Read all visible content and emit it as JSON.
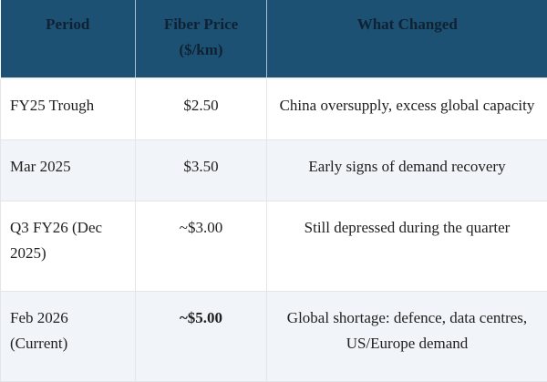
{
  "table": {
    "title_semantic": "fiber-price-history-table",
    "columns": {
      "period": "Period",
      "price": "Fiber Price ($/km)",
      "changed": "What Changed"
    },
    "rows": [
      {
        "period": "FY25 Trough",
        "price": "$2.50",
        "price_bold": false,
        "changed": "China oversupply, excess global capacity",
        "shaded": false
      },
      {
        "period": "Mar 2025",
        "price": "$3.50",
        "price_bold": false,
        "changed": "Early signs of demand recovery",
        "shaded": true
      },
      {
        "period": "Q3 FY26 (Dec 2025)",
        "price": "~$3.00",
        "price_bold": false,
        "changed": "Still depressed during the quarter",
        "shaded": false
      },
      {
        "period": "Feb 2026 (Current)",
        "price": "~$5.00",
        "price_bold": true,
        "changed": "Global shortage: defence, data centres, US/Europe demand",
        "shaded": true
      }
    ],
    "colors": {
      "header_bg": "#1d5174",
      "header_text": "#0e2233",
      "header_divider": "#a9c0d1",
      "row_bg": "#ffffff",
      "row_shaded_bg": "#f1f5f9",
      "body_border": "#e2e6ea",
      "body_text": "#202020"
    }
  }
}
